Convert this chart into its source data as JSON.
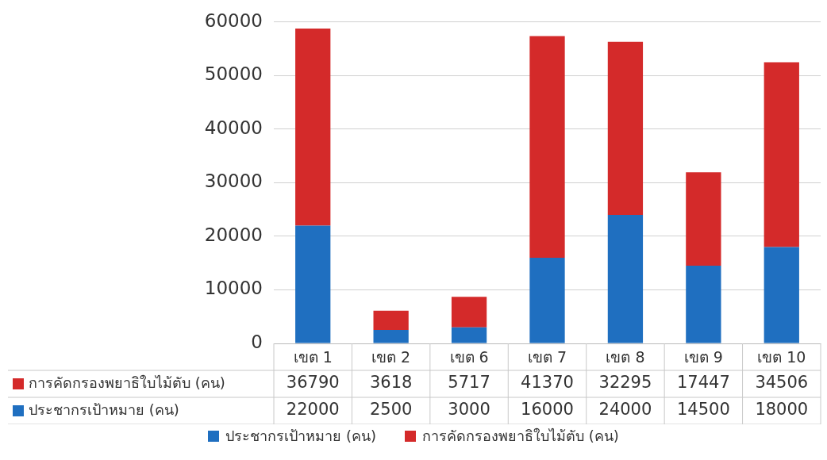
{
  "chart_data": {
    "type": "bar",
    "stacked": true,
    "categories": [
      "เขต 1",
      "เขต 2",
      "เขต 6",
      "เขต 7",
      "เขต 8",
      "เขต 9",
      "เขต 10"
    ],
    "series": [
      {
        "name": "ประชากรเป้าหมาย (คน)",
        "color": "#1f6fc0",
        "values": [
          22000,
          2500,
          3000,
          16000,
          24000,
          14500,
          18000
        ]
      },
      {
        "name": "การคัดกรองพยาธิใบไม้ตับ (คน)",
        "color": "#d42a2a",
        "values": [
          36790,
          3618,
          5717,
          41370,
          32295,
          17447,
          34506
        ]
      }
    ],
    "ylim": [
      0,
      60000
    ],
    "yticks": [
      0,
      10000,
      20000,
      30000,
      40000,
      50000,
      60000
    ],
    "grid": "y",
    "legend": "bottom",
    "data_labels": true
  }
}
